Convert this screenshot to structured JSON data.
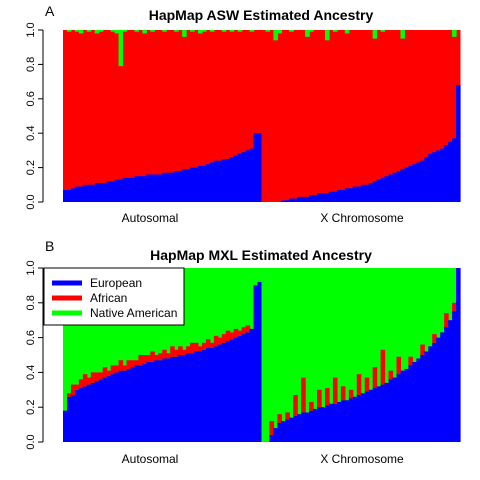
{
  "colors": {
    "european": "#0000FF",
    "african": "#FF0000",
    "native_american": "#00FF00"
  },
  "legend": {
    "items": [
      {
        "label": "European",
        "color": "#0000FF"
      },
      {
        "label": "African",
        "color": "#FF0000"
      },
      {
        "label": "Native American",
        "color": "#00FF00"
      }
    ]
  },
  "chart_data": [
    {
      "panel": "A",
      "type": "bar",
      "stacked": true,
      "title": "HapMap ASW Estimated Ancestry",
      "ylim": [
        0,
        1
      ],
      "yticks": [
        "0.0",
        "0.2",
        "0.4",
        "0.6",
        "0.8",
        "1.0"
      ],
      "groups": [
        "Autosomal",
        "X Chromosome"
      ],
      "series": [
        {
          "name": "European",
          "color": "#0000FF",
          "per_group": [
            [
              0.07,
              0.07,
              0.08,
              0.09,
              0.09,
              0.1,
              0.1,
              0.1,
              0.11,
              0.11,
              0.11,
              0.12,
              0.12,
              0.13,
              0.13,
              0.14,
              0.14,
              0.14,
              0.15,
              0.15,
              0.15,
              0.16,
              0.16,
              0.16,
              0.16,
              0.17,
              0.17,
              0.17,
              0.18,
              0.18,
              0.19,
              0.19,
              0.2,
              0.2,
              0.21,
              0.21,
              0.22,
              0.23,
              0.24,
              0.24,
              0.25,
              0.25,
              0.26,
              0.27,
              0.28,
              0.29,
              0.3,
              0.31,
              0.4,
              0.4
            ],
            [
              0.0,
              0.0,
              0.0,
              0.0,
              0.0,
              0.01,
              0.01,
              0.02,
              0.02,
              0.03,
              0.03,
              0.03,
              0.04,
              0.04,
              0.05,
              0.05,
              0.05,
              0.06,
              0.06,
              0.07,
              0.07,
              0.08,
              0.08,
              0.09,
              0.09,
              0.1,
              0.1,
              0.11,
              0.12,
              0.13,
              0.14,
              0.15,
              0.16,
              0.17,
              0.18,
              0.19,
              0.2,
              0.21,
              0.22,
              0.23,
              0.24,
              0.26,
              0.28,
              0.29,
              0.3,
              0.31,
              0.33,
              0.35,
              0.37,
              0.68
            ]
          ]
        },
        {
          "name": "Native American",
          "color": "#00FF00",
          "per_group": [
            [
              0.0,
              0.01,
              0.0,
              0.01,
              0.02,
              0.0,
              0.01,
              0.0,
              0.02,
              0.01,
              0.0,
              0.0,
              0.01,
              0.02,
              0.21,
              0.01,
              0.0,
              0.0,
              0.01,
              0.0,
              0.02,
              0.0,
              0.01,
              0.0,
              0.0,
              0.01,
              0.0,
              0.0,
              0.01,
              0.0,
              0.04,
              0.0,
              0.01,
              0.0,
              0.02,
              0.01,
              0.0,
              0.01,
              0.0,
              0.0,
              0.01,
              0.0,
              0.01,
              0.0,
              0.01,
              0.0,
              0.0,
              0.01,
              0.0,
              0.0
            ],
            [
              0.0,
              0.01,
              0.0,
              0.06,
              0.02,
              0.0,
              0.0,
              0.01,
              0.0,
              0.0,
              0.0,
              0.04,
              0.01,
              0.0,
              0.0,
              0.0,
              0.06,
              0.0,
              0.01,
              0.0,
              0.0,
              0.02,
              0.0,
              0.0,
              0.0,
              0.0,
              0.0,
              0.0,
              0.05,
              0.0,
              0.01,
              0.0,
              0.0,
              0.0,
              0.0,
              0.05,
              0.0,
              0.0,
              0.0,
              0.0,
              0.0,
              0.0,
              0.0,
              0.0,
              0.0,
              0.0,
              0.0,
              0.0,
              0.04,
              0.0
            ]
          ]
        }
      ]
    },
    {
      "panel": "B",
      "type": "bar",
      "stacked": true,
      "title": "HapMap MXL Estimated Ancestry",
      "ylim": [
        0,
        1
      ],
      "yticks": [
        "0.0",
        "0.2",
        "0.4",
        "0.6",
        "0.8",
        "1.0"
      ],
      "groups": [
        "Autosomal",
        "X Chromosome"
      ],
      "series": [
        {
          "name": "European",
          "color": "#0000FF",
          "per_group": [
            [
              0.18,
              0.26,
              0.27,
              0.3,
              0.31,
              0.32,
              0.33,
              0.34,
              0.35,
              0.36,
              0.37,
              0.38,
              0.39,
              0.4,
              0.41,
              0.41,
              0.42,
              0.43,
              0.44,
              0.44,
              0.45,
              0.46,
              0.46,
              0.47,
              0.47,
              0.48,
              0.48,
              0.49,
              0.49,
              0.5,
              0.5,
              0.51,
              0.51,
              0.52,
              0.52,
              0.53,
              0.54,
              0.54,
              0.55,
              0.56,
              0.57,
              0.58,
              0.59,
              0.6,
              0.61,
              0.62,
              0.63,
              0.65,
              0.9,
              0.92
            ],
            [
              0.0,
              0.0,
              0.04,
              0.08,
              0.11,
              0.12,
              0.13,
              0.14,
              0.15,
              0.16,
              0.17,
              0.17,
              0.18,
              0.19,
              0.2,
              0.2,
              0.21,
              0.22,
              0.22,
              0.23,
              0.24,
              0.24,
              0.25,
              0.26,
              0.27,
              0.28,
              0.29,
              0.3,
              0.31,
              0.32,
              0.33,
              0.34,
              0.36,
              0.37,
              0.39,
              0.41,
              0.42,
              0.44,
              0.46,
              0.48,
              0.5,
              0.52,
              0.55,
              0.57,
              0.6,
              0.63,
              0.66,
              0.7,
              0.75,
              1.0
            ]
          ]
        },
        {
          "name": "African",
          "color": "#FF0000",
          "per_group": [
            [
              0.0,
              0.02,
              0.06,
              0.03,
              0.05,
              0.07,
              0.04,
              0.06,
              0.05,
              0.04,
              0.06,
              0.03,
              0.05,
              0.04,
              0.06,
              0.03,
              0.05,
              0.04,
              0.03,
              0.06,
              0.05,
              0.04,
              0.06,
              0.03,
              0.04,
              0.05,
              0.03,
              0.06,
              0.04,
              0.05,
              0.03,
              0.04,
              0.06,
              0.05,
              0.03,
              0.04,
              0.05,
              0.03,
              0.06,
              0.04,
              0.05,
              0.06,
              0.04,
              0.05,
              0.03,
              0.04,
              0.04,
              0.0,
              0.0,
              0.0
            ],
            [
              0.0,
              0.0,
              0.08,
              0.0,
              0.05,
              0.0,
              0.04,
              0.0,
              0.12,
              0.0,
              0.2,
              0.0,
              0.05,
              0.0,
              0.1,
              0.0,
              0.1,
              0.0,
              0.15,
              0.0,
              0.08,
              0.0,
              0.05,
              0.0,
              0.12,
              0.0,
              0.08,
              0.0,
              0.12,
              0.0,
              0.2,
              0.0,
              0.05,
              0.0,
              0.1,
              0.0,
              0.0,
              0.05,
              0.0,
              0.0,
              0.06,
              0.0,
              0.0,
              0.05,
              0.0,
              0.0,
              0.08,
              0.0,
              0.05,
              0.0
            ]
          ]
        }
      ]
    }
  ]
}
